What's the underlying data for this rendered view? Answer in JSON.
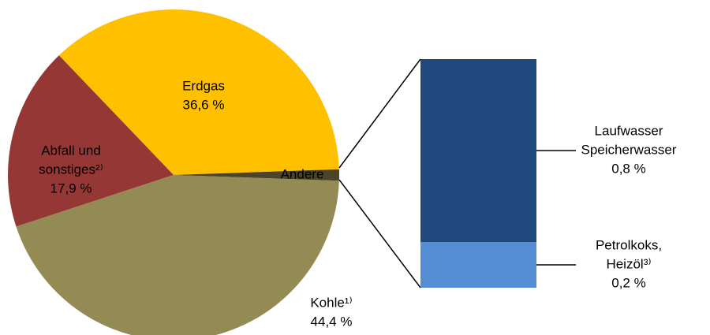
{
  "chart_data": [
    {
      "type": "pie",
      "categories": [
        [
          "Erdgas"
        ],
        [
          "Abfall und",
          "sonstiges²⁾"
        ],
        [
          "Kohle¹⁾"
        ],
        [
          "Andere"
        ]
      ],
      "values": [
        36.6,
        17.9,
        44.4,
        1.1
      ],
      "value_labels": [
        "36,6 %",
        "17,9 %",
        "44,4 %",
        null
      ],
      "colors": [
        "#ffc000",
        "#953735",
        "#948a54",
        "#4a452a"
      ]
    },
    {
      "type": "stacked_bar",
      "series": [
        {
          "name": [
            "Petrolkoks,",
            "Heizöl³⁾"
          ],
          "color": "#558ed5",
          "values": [
            0.2
          ],
          "value_labels": [
            "0,2 %"
          ]
        },
        {
          "name": [
            "Laufwasser",
            "Speicherwasser"
          ],
          "color": "#1f497d",
          "values": [
            0.8
          ],
          "value_labels": [
            "0,8 %"
          ]
        }
      ]
    }
  ]
}
